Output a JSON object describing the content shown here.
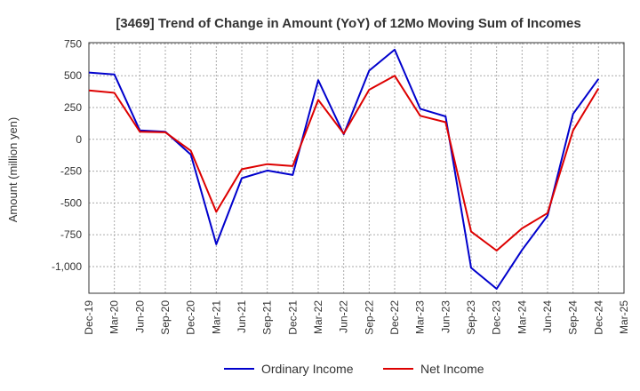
{
  "chart_data": {
    "type": "line",
    "title": "[3469]  Trend of Change in Amount (YoY) of 12Mo Moving Sum of Incomes",
    "xlabel": "",
    "ylabel": "Amount (million yen)",
    "x_tick_labels": [
      "Dec-19",
      "Mar-20",
      "Jun-20",
      "Sep-20",
      "Dec-20",
      "Mar-21",
      "Jun-21",
      "Sep-21",
      "Dec-21",
      "Mar-22",
      "Jun-22",
      "Sep-22",
      "Dec-22",
      "Mar-23",
      "Jun-23",
      "Sep-23",
      "Dec-23",
      "Mar-24",
      "Jun-24",
      "Sep-24",
      "Dec-24",
      "Mar-25"
    ],
    "y_ticks": [
      750,
      500,
      250,
      0,
      -250,
      -500,
      -750,
      -1000
    ],
    "y_tick_labels": [
      "750",
      "500",
      "250",
      "0",
      "-250",
      "-500",
      "-750",
      "-1,000"
    ],
    "ylim": [
      -1210,
      760
    ],
    "grid": true,
    "legend_position": "bottom",
    "series": [
      {
        "name": "Ordinary Income",
        "color": "#0000cc",
        "values": [
          525,
          510,
          70,
          60,
          -120,
          -825,
          -305,
          -245,
          -280,
          465,
          40,
          540,
          705,
          240,
          180,
          -1010,
          -1175,
          -870,
          -600,
          200,
          475,
          null
        ]
      },
      {
        "name": "Net Income",
        "color": "#dd0000",
        "values": [
          385,
          365,
          60,
          55,
          -90,
          -570,
          -235,
          -195,
          -210,
          310,
          45,
          390,
          500,
          185,
          135,
          -725,
          -875,
          -700,
          -580,
          70,
          400,
          null
        ]
      }
    ]
  }
}
